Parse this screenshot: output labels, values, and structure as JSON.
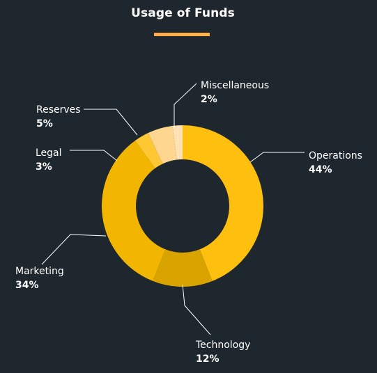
{
  "chart_data": {
    "type": "pie",
    "title": "Usage of Funds",
    "donut": true,
    "categories": [
      "Operations",
      "Technology",
      "Marketing",
      "Legal",
      "Reserves",
      "Miscellaneous"
    ],
    "values": [
      44,
      12,
      34,
      3,
      5,
      2
    ],
    "labels": [
      "44%",
      "12%",
      "34%",
      "3%",
      "5%",
      "2%"
    ],
    "colors": [
      "#ffbf0f",
      "#d9a400",
      "#f2b500",
      "#ffc733",
      "#ffd690",
      "#ffe1b3"
    ],
    "legend": "none"
  },
  "accent_color": "#ffb347"
}
